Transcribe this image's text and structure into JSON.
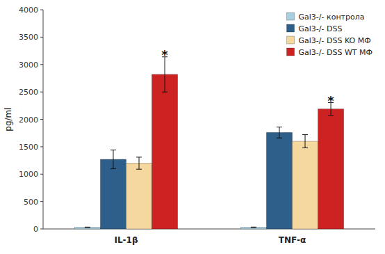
{
  "chart_data": {
    "type": "bar",
    "categories": [
      "IL-1β",
      "TNF-α"
    ],
    "series": [
      {
        "name": "Gal3-/- контрола",
        "color": "#a8cfe0",
        "values": [
          30,
          30
        ],
        "errors": [
          4,
          4
        ]
      },
      {
        "name": "Gal3-/- DSS",
        "color": "#2e5f8a",
        "values": [
          1270,
          1760
        ],
        "errors": [
          170,
          100
        ]
      },
      {
        "name": "Gal3-/- DSS KO МФ",
        "color": "#f5d7a0",
        "values": [
          1200,
          1600
        ],
        "errors": [
          110,
          120
        ]
      },
      {
        "name": "Gal3-/- DSS WT МФ",
        "color": "#cc2222",
        "values": [
          2820,
          2190
        ],
        "errors": [
          320,
          115
        ]
      }
    ],
    "ylabel": "pg/ml",
    "ylim": [
      0,
      4000
    ],
    "yticks": [
      0,
      500,
      1000,
      1500,
      2000,
      2500,
      3000,
      3500,
      4000
    ],
    "annotations": [
      {
        "text": "*",
        "x": "IL-1β",
        "series": "Gal3-/- DSS WT МФ",
        "y": 3180
      },
      {
        "text": "*",
        "x": "TNF-α",
        "series": "Gal3-/- DSS WT МФ",
        "y": 2340
      }
    ],
    "grid": false,
    "legend": "upper right"
  }
}
